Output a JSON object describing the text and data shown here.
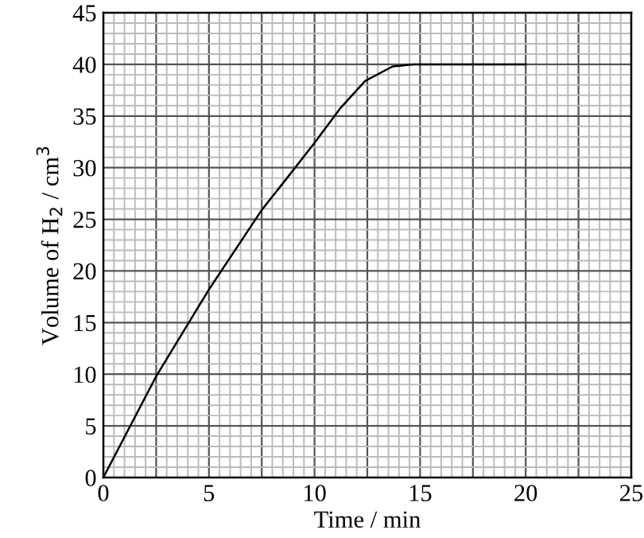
{
  "chart_data": {
    "type": "line",
    "xlabel": "Time / min",
    "ylabel": "Volume of H$_{2}$ / cm$^{3}$",
    "x": [
      0,
      2.5,
      5,
      7.5,
      8.7,
      10,
      11.2,
      12.4,
      13.7,
      14.7,
      20
    ],
    "series": [
      {
        "color": "#000000",
        "values": [
          0,
          9.8,
          18.2,
          25.9,
          29,
          32.4,
          35.7,
          38.4,
          39.8,
          40,
          40
        ]
      }
    ],
    "xlim": [
      0,
      25
    ],
    "ylim": [
      0,
      45
    ],
    "xticks": [
      0,
      5,
      10,
      15,
      20,
      25
    ],
    "yticks": [
      0,
      5,
      10,
      15,
      20,
      25,
      30,
      35,
      40,
      45
    ],
    "grid": true,
    "marker": "none",
    "line_style": "solid"
  }
}
